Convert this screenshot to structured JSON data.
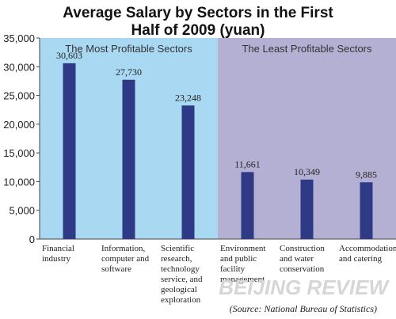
{
  "title_line1": "Average Salary by Sectors in the First",
  "title_line2": "Half of 2009 (yuan)",
  "chart_data": {
    "type": "bar",
    "categories": [
      [
        "Financial",
        "industry"
      ],
      [
        "Information,",
        "computer and",
        "software"
      ],
      [
        "Scientific",
        "research,",
        "technology",
        "service, and",
        "geological",
        "exploration"
      ],
      [
        "Environment",
        "and public",
        "facility",
        "management"
      ],
      [
        "Construction",
        "and water",
        "conservation"
      ],
      [
        "Accommodation",
        "and catering"
      ]
    ],
    "values": [
      30603,
      27730,
      23248,
      11661,
      10349,
      9885
    ],
    "data_labels": [
      "30,603",
      "27,730",
      "23,248",
      "11,661",
      "10,349",
      "9,885"
    ],
    "ylim": [
      0,
      35000
    ],
    "yticks": [
      0,
      5000,
      10000,
      15000,
      20000,
      25000,
      30000,
      35000
    ],
    "ytick_labels": [
      "0",
      "5,000",
      "10,000",
      "15,000",
      "20,000",
      "25,000",
      "30,000",
      "35,000"
    ],
    "regions": [
      {
        "label": "The Most Profitable Sectors",
        "color": "#a9d8f3",
        "categories": [
          0,
          1,
          2
        ]
      },
      {
        "label": "The Least Profitable Sectors",
        "color": "#b3b0d3",
        "categories": [
          3,
          4,
          5
        ]
      }
    ],
    "bar_color": "#2e3a86",
    "grid": false
  },
  "watermark": "BEIJING REVIEW",
  "source": "(Source: National Bureau of Statistics)"
}
